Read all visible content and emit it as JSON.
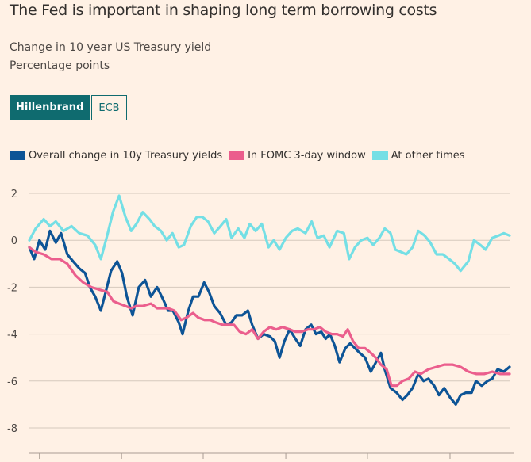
{
  "header": {
    "title": "The Fed is important in shaping long term borrowing costs",
    "subtitle_line1": "Change in 10 year US Treasury yield",
    "subtitle_line2": "Percentage points"
  },
  "tabs": [
    {
      "label": "Hillenbrand",
      "active": true
    },
    {
      "label": "ECB",
      "active": false
    }
  ],
  "legend": [
    {
      "label": "Overall change in 10y Treasury yields",
      "color": "#0d5496"
    },
    {
      "label": "In FOMC 3-day window",
      "color": "#eb5e8d"
    },
    {
      "label": "At other times",
      "color": "#74dfe5"
    }
  ],
  "chart_data": {
    "type": "line",
    "title": "The Fed is important in shaping long term borrowing costs",
    "subtitle": "Change in 10 year US Treasury yield",
    "ylabel": "Percentage points",
    "xlabel": "",
    "x_note": "x is fraction of the plotted time period (x-axis tick labels not visible)",
    "xlim": [
      0,
      1
    ],
    "ylim": [
      -9.0,
      2.5
    ],
    "yticks": [
      2,
      0,
      -2,
      -4,
      -6,
      -8
    ],
    "ytick_labels": [
      "2",
      "0",
      "-2",
      "-4",
      "-6",
      "-8"
    ],
    "xticks": [
      0.021,
      0.192,
      0.362,
      0.534,
      0.704,
      0.876
    ],
    "grid": true,
    "legend_position": "top-left",
    "series": [
      {
        "name": "At other times",
        "color": "#74dfe5",
        "points": [
          [
            0,
            0
          ],
          [
            0.013,
            0.5
          ],
          [
            0.03,
            0.9
          ],
          [
            0.043,
            0.6
          ],
          [
            0.055,
            0.8
          ],
          [
            0.071,
            0.4
          ],
          [
            0.088,
            0.6
          ],
          [
            0.104,
            0.3
          ],
          [
            0.121,
            0.2
          ],
          [
            0.137,
            -0.2
          ],
          [
            0.149,
            -0.8
          ],
          [
            0.162,
            0.2
          ],
          [
            0.174,
            1.2
          ],
          [
            0.187,
            1.9
          ],
          [
            0.2,
            1.0
          ],
          [
            0.212,
            0.4
          ],
          [
            0.223,
            0.7
          ],
          [
            0.236,
            1.2
          ],
          [
            0.25,
            0.9
          ],
          [
            0.261,
            0.6
          ],
          [
            0.274,
            0.4
          ],
          [
            0.286,
            0.0
          ],
          [
            0.298,
            0.3
          ],
          [
            0.311,
            -0.3
          ],
          [
            0.322,
            -0.2
          ],
          [
            0.336,
            0.6
          ],
          [
            0.349,
            1.0
          ],
          [
            0.36,
            1.0
          ],
          [
            0.372,
            0.8
          ],
          [
            0.385,
            0.3
          ],
          [
            0.398,
            0.6
          ],
          [
            0.41,
            0.9
          ],
          [
            0.421,
            0.1
          ],
          [
            0.435,
            0.5
          ],
          [
            0.448,
            0.1
          ],
          [
            0.459,
            0.7
          ],
          [
            0.471,
            0.4
          ],
          [
            0.484,
            0.7
          ],
          [
            0.498,
            -0.3
          ],
          [
            0.509,
            0.0
          ],
          [
            0.521,
            -0.4
          ],
          [
            0.534,
            0.1
          ],
          [
            0.547,
            0.4
          ],
          [
            0.559,
            0.5
          ],
          [
            0.575,
            0.3
          ],
          [
            0.588,
            0.8
          ],
          [
            0.6,
            0.1
          ],
          [
            0.613,
            0.2
          ],
          [
            0.625,
            -0.3
          ],
          [
            0.641,
            0.4
          ],
          [
            0.655,
            0.3
          ],
          [
            0.666,
            -0.8
          ],
          [
            0.678,
            -0.3
          ],
          [
            0.691,
            0.0
          ],
          [
            0.704,
            0.1
          ],
          [
            0.716,
            -0.2
          ],
          [
            0.729,
            0.1
          ],
          [
            0.74,
            0.5
          ],
          [
            0.752,
            0.3
          ],
          [
            0.762,
            -0.4
          ],
          [
            0.774,
            -0.5
          ],
          [
            0.785,
            -0.6
          ],
          [
            0.798,
            -0.3
          ],
          [
            0.81,
            0.4
          ],
          [
            0.823,
            0.2
          ],
          [
            0.835,
            -0.1
          ],
          [
            0.848,
            -0.6
          ],
          [
            0.861,
            -0.6
          ],
          [
            0.874,
            -0.8
          ],
          [
            0.886,
            -1.0
          ],
          [
            0.898,
            -1.3
          ],
          [
            0.914,
            -0.9
          ],
          [
            0.926,
            0.0
          ],
          [
            0.939,
            -0.2
          ],
          [
            0.95,
            -0.4
          ],
          [
            0.964,
            0.1
          ],
          [
            0.977,
            0.2
          ],
          [
            0.988,
            0.3
          ],
          [
            1,
            0.2
          ]
        ]
      },
      {
        "name": "Overall change in 10y Treasury yields",
        "color": "#0d5496",
        "points": [
          [
            0,
            -0.3
          ],
          [
            0.01,
            -0.8
          ],
          [
            0.021,
            0.0
          ],
          [
            0.033,
            -0.4
          ],
          [
            0.043,
            0.4
          ],
          [
            0.055,
            -0.1
          ],
          [
            0.066,
            0.3
          ],
          [
            0.079,
            -0.6
          ],
          [
            0.091,
            -0.9
          ],
          [
            0.104,
            -1.2
          ],
          [
            0.116,
            -1.4
          ],
          [
            0.126,
            -2.0
          ],
          [
            0.137,
            -2.4
          ],
          [
            0.149,
            -3.0
          ],
          [
            0.159,
            -2.2
          ],
          [
            0.17,
            -1.3
          ],
          [
            0.183,
            -0.9
          ],
          [
            0.193,
            -1.4
          ],
          [
            0.203,
            -2.4
          ],
          [
            0.215,
            -3.2
          ],
          [
            0.228,
            -2.0
          ],
          [
            0.241,
            -1.7
          ],
          [
            0.253,
            -2.4
          ],
          [
            0.266,
            -2.0
          ],
          [
            0.278,
            -2.5
          ],
          [
            0.289,
            -3.0
          ],
          [
            0.299,
            -3.0
          ],
          [
            0.311,
            -3.5
          ],
          [
            0.319,
            -4.0
          ],
          [
            0.331,
            -3.0
          ],
          [
            0.341,
            -2.4
          ],
          [
            0.352,
            -2.4
          ],
          [
            0.364,
            -1.8
          ],
          [
            0.374,
            -2.2
          ],
          [
            0.385,
            -2.8
          ],
          [
            0.397,
            -3.1
          ],
          [
            0.41,
            -3.6
          ],
          [
            0.421,
            -3.5
          ],
          [
            0.431,
            -3.2
          ],
          [
            0.443,
            -3.2
          ],
          [
            0.455,
            -3.0
          ],
          [
            0.464,
            -3.6
          ],
          [
            0.476,
            -4.2
          ],
          [
            0.488,
            -4.0
          ],
          [
            0.501,
            -4.1
          ],
          [
            0.511,
            -4.3
          ],
          [
            0.521,
            -5.0
          ],
          [
            0.531,
            -4.3
          ],
          [
            0.542,
            -3.8
          ],
          [
            0.554,
            -4.2
          ],
          [
            0.564,
            -4.5
          ],
          [
            0.575,
            -3.8
          ],
          [
            0.587,
            -3.6
          ],
          [
            0.597,
            -4.0
          ],
          [
            0.608,
            -3.9
          ],
          [
            0.617,
            -4.2
          ],
          [
            0.626,
            -4.0
          ],
          [
            0.636,
            -4.5
          ],
          [
            0.646,
            -5.2
          ],
          [
            0.658,
            -4.6
          ],
          [
            0.668,
            -4.4
          ],
          [
            0.678,
            -4.6
          ],
          [
            0.688,
            -4.8
          ],
          [
            0.699,
            -5.0
          ],
          [
            0.711,
            -5.6
          ],
          [
            0.719,
            -5.3
          ],
          [
            0.732,
            -4.8
          ],
          [
            0.74,
            -5.5
          ],
          [
            0.752,
            -6.3
          ],
          [
            0.765,
            -6.5
          ],
          [
            0.777,
            -6.8
          ],
          [
            0.787,
            -6.6
          ],
          [
            0.798,
            -6.3
          ],
          [
            0.81,
            -5.7
          ],
          [
            0.821,
            -6.0
          ],
          [
            0.831,
            -5.9
          ],
          [
            0.843,
            -6.2
          ],
          [
            0.853,
            -6.6
          ],
          [
            0.864,
            -6.3
          ],
          [
            0.876,
            -6.7
          ],
          [
            0.888,
            -7.0
          ],
          [
            0.898,
            -6.6
          ],
          [
            0.909,
            -6.5
          ],
          [
            0.921,
            -6.5
          ],
          [
            0.93,
            -6.0
          ],
          [
            0.942,
            -6.2
          ],
          [
            0.954,
            -6.0
          ],
          [
            0.964,
            -5.9
          ],
          [
            0.975,
            -5.5
          ],
          [
            0.988,
            -5.6
          ],
          [
            1,
            -5.4
          ]
        ]
      },
      {
        "name": "In FOMC 3-day window",
        "color": "#eb5e8d",
        "points": [
          [
            0,
            -0.3
          ],
          [
            0.013,
            -0.5
          ],
          [
            0.03,
            -0.6
          ],
          [
            0.046,
            -0.8
          ],
          [
            0.063,
            -0.8
          ],
          [
            0.079,
            -1.0
          ],
          [
            0.096,
            -1.5
          ],
          [
            0.112,
            -1.8
          ],
          [
            0.129,
            -2.0
          ],
          [
            0.145,
            -2.1
          ],
          [
            0.162,
            -2.2
          ],
          [
            0.175,
            -2.6
          ],
          [
            0.187,
            -2.7
          ],
          [
            0.2,
            -2.8
          ],
          [
            0.212,
            -2.9
          ],
          [
            0.223,
            -2.8
          ],
          [
            0.236,
            -2.8
          ],
          [
            0.253,
            -2.7
          ],
          [
            0.266,
            -2.9
          ],
          [
            0.278,
            -2.9
          ],
          [
            0.289,
            -2.9
          ],
          [
            0.302,
            -3.0
          ],
          [
            0.316,
            -3.4
          ],
          [
            0.327,
            -3.3
          ],
          [
            0.341,
            -3.1
          ],
          [
            0.352,
            -3.3
          ],
          [
            0.365,
            -3.4
          ],
          [
            0.377,
            -3.4
          ],
          [
            0.388,
            -3.5
          ],
          [
            0.402,
            -3.6
          ],
          [
            0.413,
            -3.6
          ],
          [
            0.426,
            -3.6
          ],
          [
            0.438,
            -3.9
          ],
          [
            0.451,
            -4.0
          ],
          [
            0.464,
            -3.8
          ],
          [
            0.476,
            -4.2
          ],
          [
            0.488,
            -3.9
          ],
          [
            0.501,
            -3.7
          ],
          [
            0.514,
            -3.8
          ],
          [
            0.527,
            -3.7
          ],
          [
            0.542,
            -3.8
          ],
          [
            0.554,
            -3.9
          ],
          [
            0.567,
            -3.9
          ],
          [
            0.58,
            -3.8
          ],
          [
            0.592,
            -3.8
          ],
          [
            0.605,
            -3.7
          ],
          [
            0.617,
            -3.9
          ],
          [
            0.63,
            -4.0
          ],
          [
            0.641,
            -4.0
          ],
          [
            0.653,
            -4.1
          ],
          [
            0.663,
            -3.8
          ],
          [
            0.674,
            -4.3
          ],
          [
            0.686,
            -4.6
          ],
          [
            0.699,
            -4.6
          ],
          [
            0.711,
            -4.8
          ],
          [
            0.721,
            -5.0
          ],
          [
            0.732,
            -5.3
          ],
          [
            0.744,
            -5.5
          ],
          [
            0.754,
            -6.2
          ],
          [
            0.765,
            -6.2
          ],
          [
            0.777,
            -6.0
          ],
          [
            0.79,
            -5.9
          ],
          [
            0.803,
            -5.6
          ],
          [
            0.815,
            -5.7
          ],
          [
            0.831,
            -5.5
          ],
          [
            0.848,
            -5.4
          ],
          [
            0.864,
            -5.3
          ],
          [
            0.881,
            -5.3
          ],
          [
            0.898,
            -5.4
          ],
          [
            0.914,
            -5.6
          ],
          [
            0.931,
            -5.7
          ],
          [
            0.947,
            -5.7
          ],
          [
            0.964,
            -5.6
          ],
          [
            0.98,
            -5.7
          ],
          [
            1,
            -5.7
          ]
        ]
      }
    ]
  }
}
